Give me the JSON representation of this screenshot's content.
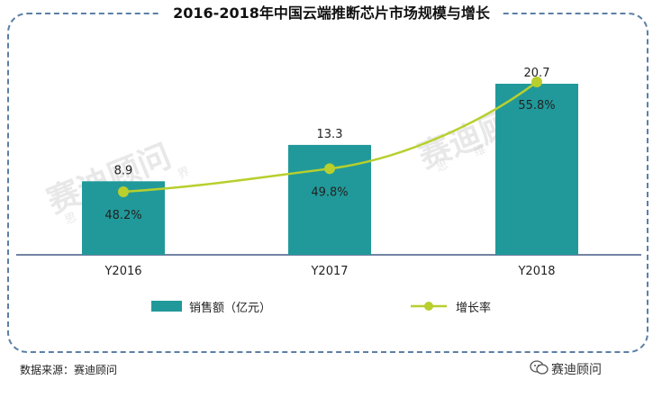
{
  "header": {
    "title": "2016-2018年中国云端推断芯片市场规模与增长"
  },
  "chart_data": {
    "type": "bar",
    "categories": [
      "Y2016",
      "Y2017",
      "Y2018"
    ],
    "series": [
      {
        "name": "销售额（亿元）",
        "type": "bar",
        "values": [
          8.9,
          13.3,
          20.7
        ],
        "labels": [
          "8.9",
          "13.3",
          "20.7"
        ],
        "color": "#21999a"
      },
      {
        "name": "增长率",
        "type": "line",
        "values": [
          48.2,
          49.8,
          55.8
        ],
        "labels": [
          "48.2%",
          "49.8%",
          "55.8%"
        ],
        "color": "#b8cf2d"
      }
    ],
    "grid": false,
    "legend": "bottom"
  },
  "legend": {
    "bar_label": "销售额（亿元）",
    "line_label": "增长率"
  },
  "watermark": {
    "brand": "赛迪顾问",
    "slogan_left": "思 维 世 界",
    "slogan_right": "思 维 创"
  },
  "footer": {
    "source": "数据来源：赛迪顾问",
    "brand": "赛迪顾问"
  }
}
